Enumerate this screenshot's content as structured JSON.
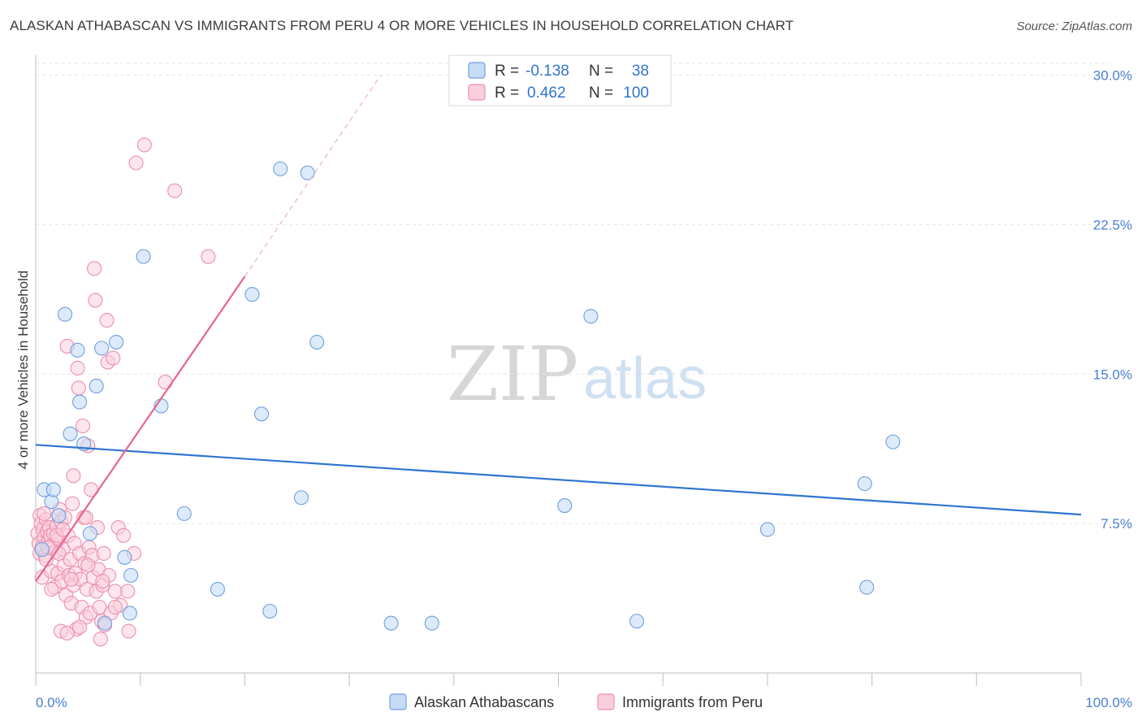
{
  "header": {
    "title": "ALASKAN ATHABASCAN VS IMMIGRANTS FROM PERU 4 OR MORE VEHICLES IN HOUSEHOLD CORRELATION CHART",
    "source": "Source: ZipAtlas.com"
  },
  "watermark": {
    "zip": "ZIP",
    "atlas": "atlas"
  },
  "colors": {
    "blue_fill": "#c6dcf5",
    "blue_stroke": "#6f9fde",
    "blue_line": "#2f74d0",
    "pink_fill": "#f9cfdc",
    "pink_stroke": "#ec8fae",
    "pink_line": "#e8648f",
    "grid": "#e3e3e3",
    "tick_label": "#4a7fcf"
  },
  "legend": {
    "rows": [
      {
        "r_label": "R =",
        "r_value": "-0.138",
        "n_label": "N =",
        "n_value": "38"
      },
      {
        "r_label": "R =",
        "r_value": "0.462",
        "n_label": "N =",
        "n_value": "100"
      }
    ]
  },
  "chart_data": {
    "type": "scatter",
    "title": "ALASKAN ATHABASCAN VS IMMIGRANTS FROM PERU 4 OR MORE VEHICLES IN HOUSEHOLD CORRELATION CHART",
    "xlabel": "",
    "ylabel": "4 or more Vehicles in Household",
    "xlim": [
      0,
      100
    ],
    "ylim": [
      0,
      31
    ],
    "x_tick_labels": [
      "0.0%",
      "100.0%"
    ],
    "y_ticks": [
      7.5,
      15.0,
      22.5,
      30.0
    ],
    "y_tick_labels": [
      "7.5%",
      "15.0%",
      "22.5%",
      "30.0%"
    ],
    "grid": true,
    "legend_position": "top-center",
    "series": [
      {
        "name": "Alaskan Athabascans",
        "r": -0.138,
        "n": 38,
        "trend": {
          "x0": 0,
          "y0": 11.45,
          "x1": 100,
          "y1": 7.95
        },
        "points": [
          [
            0.8,
            9.2
          ],
          [
            1.5,
            8.6
          ],
          [
            1.7,
            9.2
          ],
          [
            2.2,
            7.9
          ],
          [
            2.8,
            18.0
          ],
          [
            3.3,
            12.0
          ],
          [
            4.0,
            16.2
          ],
          [
            4.2,
            13.6
          ],
          [
            4.6,
            11.5
          ],
          [
            5.2,
            7.0
          ],
          [
            5.8,
            14.4
          ],
          [
            6.3,
            16.3
          ],
          [
            6.6,
            2.5
          ],
          [
            7.7,
            16.6
          ],
          [
            8.5,
            5.8
          ],
          [
            9.0,
            3.0
          ],
          [
            9.1,
            4.9
          ],
          [
            10.3,
            20.9
          ],
          [
            12.0,
            13.4
          ],
          [
            14.2,
            8.0
          ],
          [
            17.4,
            4.2
          ],
          [
            20.7,
            19.0
          ],
          [
            21.6,
            13.0
          ],
          [
            22.4,
            3.1
          ],
          [
            23.4,
            25.3
          ],
          [
            25.4,
            8.8
          ],
          [
            26.0,
            25.1
          ],
          [
            26.9,
            16.6
          ],
          [
            34.0,
            2.5
          ],
          [
            37.9,
            2.5
          ],
          [
            50.6,
            8.4
          ],
          [
            53.1,
            17.9
          ],
          [
            57.5,
            2.6
          ],
          [
            70.0,
            7.2
          ],
          [
            79.5,
            4.3
          ],
          [
            79.3,
            9.5
          ],
          [
            82.0,
            11.6
          ],
          [
            0.6,
            6.2
          ]
        ]
      },
      {
        "name": "Immigrants from Peru",
        "r": 0.462,
        "n": 100,
        "trend": {
          "x0": 0,
          "y0": 4.6,
          "x1": 20,
          "y1": 19.9
        },
        "trend_ext": {
          "x0": 20,
          "y0": 19.9,
          "x1": 33,
          "y1": 30.0
        },
        "points": [
          [
            0.2,
            7.0
          ],
          [
            0.3,
            6.5
          ],
          [
            0.4,
            7.9
          ],
          [
            0.4,
            6.0
          ],
          [
            0.5,
            7.5
          ],
          [
            0.6,
            4.8
          ],
          [
            0.6,
            6.3
          ],
          [
            0.7,
            7.2
          ],
          [
            0.8,
            6.8
          ],
          [
            0.9,
            5.9
          ],
          [
            1.0,
            7.7
          ],
          [
            1.1,
            7.1
          ],
          [
            1.2,
            6.6
          ],
          [
            1.3,
            7.3
          ],
          [
            1.4,
            6.9
          ],
          [
            1.5,
            5.1
          ],
          [
            1.6,
            6.4
          ],
          [
            1.7,
            7.0
          ],
          [
            1.8,
            4.3
          ],
          [
            1.9,
            6.1
          ],
          [
            2.0,
            7.4
          ],
          [
            2.1,
            5.0
          ],
          [
            2.2,
            6.7
          ],
          [
            2.3,
            8.2
          ],
          [
            2.4,
            7.6
          ],
          [
            2.5,
            4.6
          ],
          [
            2.6,
            6.2
          ],
          [
            2.7,
            5.4
          ],
          [
            2.8,
            7.8
          ],
          [
            2.9,
            3.9
          ],
          [
            3.0,
            16.4
          ],
          [
            3.1,
            6.9
          ],
          [
            3.2,
            4.9
          ],
          [
            3.3,
            5.7
          ],
          [
            3.4,
            3.5
          ],
          [
            3.5,
            8.5
          ],
          [
            3.6,
            4.4
          ],
          [
            3.7,
            6.5
          ],
          [
            3.8,
            5.0
          ],
          [
            3.9,
            2.2
          ],
          [
            4.0,
            15.3
          ],
          [
            4.1,
            14.3
          ],
          [
            4.2,
            6.0
          ],
          [
            4.3,
            4.7
          ],
          [
            4.4,
            3.3
          ],
          [
            4.5,
            12.4
          ],
          [
            4.6,
            7.8
          ],
          [
            4.7,
            5.5
          ],
          [
            4.8,
            2.8
          ],
          [
            4.9,
            4.2
          ],
          [
            5.0,
            11.4
          ],
          [
            5.1,
            6.3
          ],
          [
            5.2,
            3.0
          ],
          [
            5.3,
            9.2
          ],
          [
            5.4,
            5.9
          ],
          [
            5.5,
            4.8
          ],
          [
            5.6,
            20.3
          ],
          [
            5.7,
            18.7
          ],
          [
            5.8,
            4.1
          ],
          [
            5.9,
            7.3
          ],
          [
            6.0,
            5.2
          ],
          [
            6.1,
            3.3
          ],
          [
            6.2,
            1.7
          ],
          [
            6.3,
            2.6
          ],
          [
            6.4,
            4.4
          ],
          [
            6.5,
            6.0
          ],
          [
            6.6,
            2.4
          ],
          [
            6.8,
            17.7
          ],
          [
            6.9,
            15.6
          ],
          [
            7.0,
            4.9
          ],
          [
            7.2,
            3.0
          ],
          [
            7.4,
            15.8
          ],
          [
            7.6,
            4.1
          ],
          [
            7.9,
            7.3
          ],
          [
            8.1,
            3.4
          ],
          [
            8.4,
            6.9
          ],
          [
            8.8,
            4.1
          ],
          [
            8.9,
            2.1
          ],
          [
            9.4,
            6.0
          ],
          [
            9.6,
            25.6
          ],
          [
            10.4,
            26.5
          ],
          [
            12.4,
            14.6
          ],
          [
            13.3,
            24.2
          ],
          [
            16.5,
            20.9
          ],
          [
            1.0,
            5.7
          ],
          [
            2.4,
            2.1
          ],
          [
            3.6,
            9.9
          ],
          [
            4.8,
            7.8
          ],
          [
            1.2,
            6.3
          ],
          [
            2.0,
            6.9
          ],
          [
            2.6,
            7.2
          ],
          [
            0.8,
            8.0
          ],
          [
            1.5,
            4.2
          ],
          [
            3.0,
            2.0
          ],
          [
            4.2,
            2.3
          ],
          [
            5.0,
            5.4
          ],
          [
            6.4,
            4.6
          ],
          [
            7.6,
            3.3
          ],
          [
            2.2,
            6.0
          ],
          [
            3.4,
            4.7
          ]
        ]
      }
    ]
  },
  "bottom_legend": [
    {
      "label": "Alaskan Athabascans"
    },
    {
      "label": "Immigrants from Peru"
    }
  ]
}
